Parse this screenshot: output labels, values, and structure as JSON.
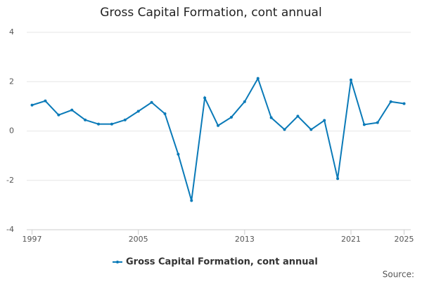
{
  "chart_data": {
    "type": "line",
    "title": "Gross Capital Formation, cont annual",
    "x": [
      1997,
      1998,
      1999,
      2000,
      2001,
      2002,
      2003,
      2004,
      2005,
      2006,
      2007,
      2008,
      2009,
      2010,
      2011,
      2012,
      2013,
      2014,
      2015,
      2016,
      2017,
      2018,
      2019,
      2020,
      2021,
      2022,
      2023,
      2024,
      2025
    ],
    "series": [
      {
        "name": "Gross Capital Formation, cont annual",
        "color": "#0a7ab8",
        "values": [
          1.05,
          1.22,
          0.65,
          0.85,
          0.45,
          0.28,
          0.28,
          0.45,
          0.8,
          1.16,
          0.7,
          -0.94,
          -2.82,
          1.34,
          0.22,
          0.56,
          1.19,
          2.13,
          0.54,
          0.06,
          0.6,
          0.06,
          0.43,
          -1.93,
          2.07,
          0.26,
          0.34,
          1.19,
          1.11
        ]
      }
    ],
    "xlim": [
      1996.6,
      2025.5
    ],
    "xticks": [
      1997,
      2005,
      2013,
      2021,
      2025
    ],
    "ylim": [
      -4,
      4
    ],
    "yticks": [
      -4,
      -2,
      0,
      2,
      4
    ],
    "grid": true,
    "legend": "bottom",
    "source": "Source:"
  }
}
